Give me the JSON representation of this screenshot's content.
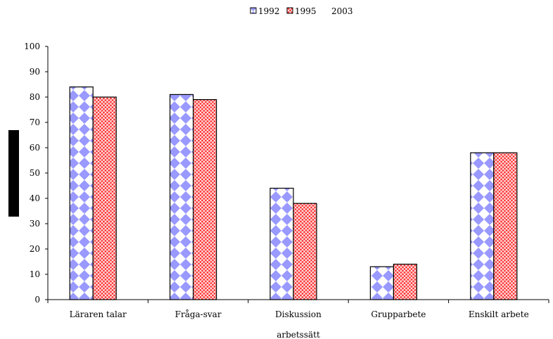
{
  "chart_data": {
    "type": "bar",
    "categories": [
      "Läraren talar",
      "Fråga-svar",
      "Diskussion",
      "Grupparbete",
      "Enskilt arbete"
    ],
    "series": [
      {
        "name": "1992",
        "values": [
          84,
          81,
          44,
          13,
          58
        ],
        "pattern": "diamond",
        "color": "#9999ff"
      },
      {
        "name": "1995",
        "values": [
          80,
          79,
          38,
          14,
          58
        ],
        "pattern": "crosshatch",
        "color": "#ff3333"
      },
      {
        "name": "2003",
        "values": [
          null,
          null,
          null,
          null,
          null
        ],
        "pattern": "none",
        "color": "#ffffff"
      }
    ],
    "xlabel": "arbetssätt",
    "ylabel": "",
    "ylim": [
      0,
      100
    ],
    "yticks": [
      0,
      10,
      20,
      30,
      40,
      50,
      60,
      70,
      80,
      90,
      100
    ],
    "grid": false,
    "legend_position": "top-center"
  }
}
